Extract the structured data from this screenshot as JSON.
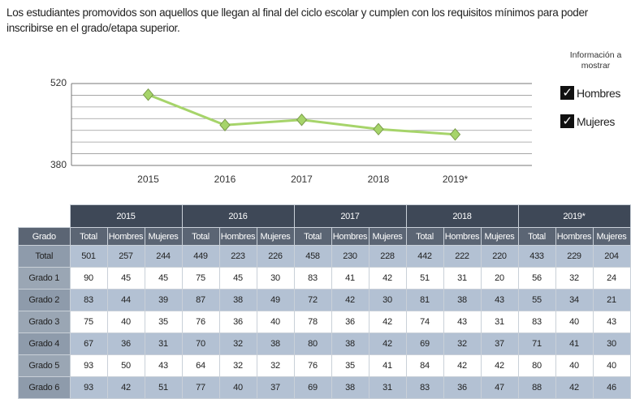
{
  "intro": "Los estudiantes promovidos son aquellos que llegan al final del ciclo escolar y cumplen con los requisitos mínimos para poder inscribirse en el grado/etapa superior.",
  "chart_data": {
    "type": "line",
    "categories": [
      "2015",
      "2016",
      "2017",
      "2018",
      "2019*"
    ],
    "values": [
      501,
      449,
      458,
      442,
      433
    ],
    "color": "#a6d46a",
    "ylim": [
      380,
      520
    ],
    "yticks": [
      380,
      520
    ],
    "grid": true
  },
  "controls": {
    "title": "Información a mostrar",
    "options": [
      "Hombres",
      "Mujeres"
    ]
  },
  "table": {
    "corner": "Grado",
    "years": [
      "2015",
      "2016",
      "2017",
      "2018",
      "2019*"
    ],
    "columns": [
      "Total",
      "Hombres",
      "Mujeres"
    ],
    "rows": [
      [
        "Total",
        501,
        257,
        244,
        449,
        223,
        226,
        458,
        230,
        228,
        442,
        222,
        220,
        433,
        229,
        204
      ],
      [
        "Grado 1",
        90,
        45,
        45,
        75,
        45,
        30,
        83,
        41,
        42,
        51,
        31,
        20,
        56,
        32,
        24
      ],
      [
        "Grado 2",
        83,
        44,
        39,
        87,
        38,
        49,
        72,
        42,
        30,
        81,
        38,
        43,
        55,
        34,
        21
      ],
      [
        "Grado 3",
        75,
        40,
        35,
        76,
        36,
        40,
        78,
        36,
        42,
        74,
        43,
        31,
        83,
        40,
        43
      ],
      [
        "Grado 4",
        67,
        36,
        31,
        70,
        32,
        38,
        80,
        38,
        42,
        69,
        32,
        37,
        71,
        41,
        30
      ],
      [
        "Grado 5",
        93,
        50,
        43,
        64,
        32,
        32,
        76,
        35,
        41,
        84,
        42,
        42,
        80,
        40,
        40
      ],
      [
        "Grado 6",
        93,
        42,
        51,
        77,
        40,
        37,
        69,
        38,
        31,
        83,
        36,
        47,
        88,
        42,
        46
      ]
    ]
  }
}
